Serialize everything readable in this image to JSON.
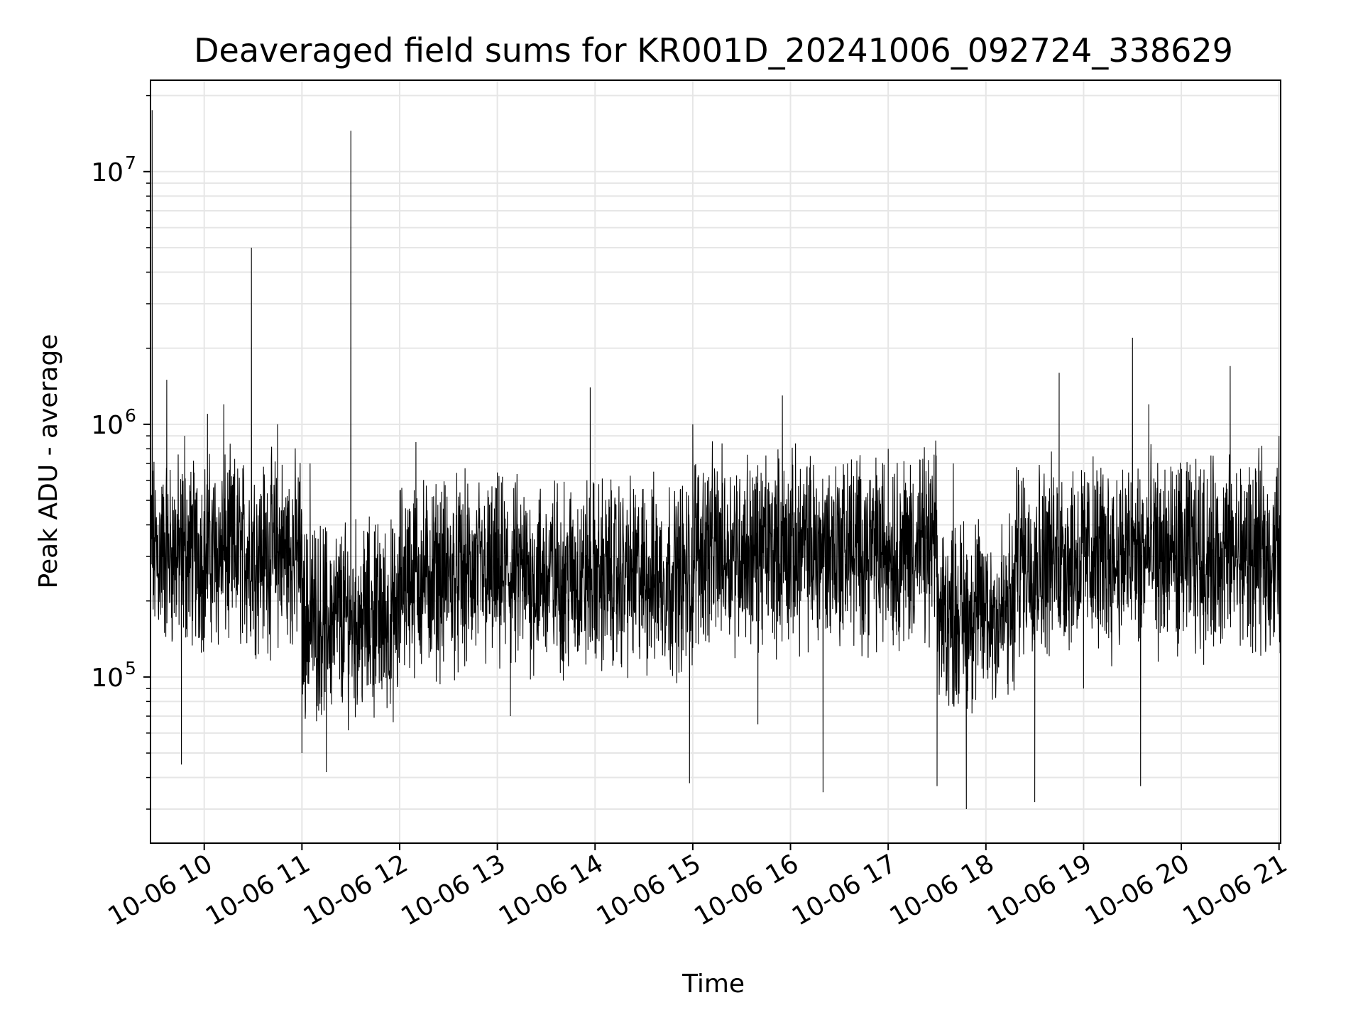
{
  "chart_data": {
    "type": "line",
    "title": "Deaveraged field sums for KR001D_20241006_092724_338629",
    "xlabel": "Time",
    "ylabel": "Peak ADU - average",
    "x_ticks": [
      "10-06 10",
      "10-06 11",
      "10-06 12",
      "10-06 13",
      "10-06 14",
      "10-06 15",
      "10-06 16",
      "10-06 17",
      "10-06 18",
      "10-06 19",
      "10-06 20",
      "10-06 21"
    ],
    "y_ticks": [
      {
        "value": 100000,
        "base": "10",
        "exp": "5"
      },
      {
        "value": 1000000,
        "base": "10",
        "exp": "6"
      },
      {
        "value": 10000000,
        "base": "10",
        "exp": "7"
      }
    ],
    "y_scale": "log",
    "ylim": [
      22000,
      23000000
    ],
    "xlim": [
      "2024-10-06 09:27",
      "2024-10-06 21:01"
    ],
    "grid": true,
    "line_color": "#000000",
    "grid_color": "#e6e6e6",
    "series": [
      {
        "x": [
          "2024-10-06 09:27",
          "2024-10-06 09:28",
          "2024-10-06 09:37",
          "2024-10-06 09:46",
          "2024-10-06 09:48",
          "2024-10-06 09:55",
          "2024-10-06 10:02",
          "2024-10-06 10:12",
          "2024-10-06 10:29",
          "2024-10-06 10:30",
          "2024-10-06 10:45",
          "2024-10-06 11:00",
          "2024-10-06 11:05",
          "2024-10-06 11:15",
          "2024-10-06 11:30",
          "2024-10-06 11:33",
          "2024-10-06 11:45",
          "2024-10-06 12:10",
          "2024-10-06 12:30",
          "2024-10-06 13:00",
          "2024-10-06 13:08",
          "2024-10-06 13:40",
          "2024-10-06 13:57",
          "2024-10-06 14:20",
          "2024-10-06 14:58",
          "2024-10-06 15:00",
          "2024-10-06 15:20",
          "2024-10-06 15:40",
          "2024-10-06 15:55",
          "2024-10-06 16:20",
          "2024-10-06 16:35",
          "2024-10-06 17:00",
          "2024-10-06 17:30",
          "2024-10-06 17:40",
          "2024-10-06 17:48",
          "2024-10-06 18:00",
          "2024-10-06 18:30",
          "2024-10-06 18:45",
          "2024-10-06 19:00",
          "2024-10-06 19:30",
          "2024-10-06 19:35",
          "2024-10-06 19:40",
          "2024-10-06 20:00",
          "2024-10-06 20:30",
          "2024-10-06 20:45",
          "2024-10-06 21:00"
        ],
        "y": [
          400000,
          17500000,
          1500000,
          45000,
          900000,
          300000,
          1100000,
          1200000,
          5000000,
          300000,
          1000000,
          50000,
          700000,
          42000,
          14500000,
          150000,
          400000,
          850000,
          300000,
          250000,
          70000,
          300000,
          1400000,
          250000,
          38000,
          1000000,
          350000,
          65000,
          1300000,
          35000,
          700000,
          800000,
          37000,
          700000,
          30000,
          300000,
          32000,
          1600000,
          90000,
          2200000,
          37000,
          1200000,
          500000,
          1700000,
          400000,
          900000
        ]
      }
    ]
  }
}
